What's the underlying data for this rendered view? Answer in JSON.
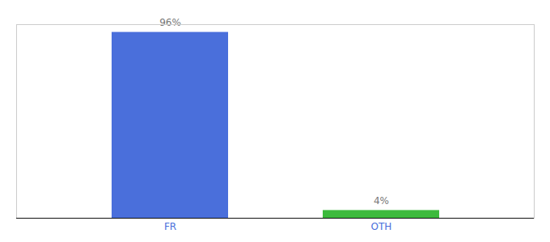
{
  "chart_data": {
    "type": "bar",
    "categories": [
      "FR",
      "OTH"
    ],
    "values": [
      96,
      4
    ],
    "value_labels": [
      "96%",
      "4%"
    ],
    "colors": [
      "#4a6fdb",
      "#3dba3d"
    ],
    "ylim": [
      0,
      100
    ],
    "data_labels": true,
    "tick_labels": "x",
    "grid": false
  }
}
